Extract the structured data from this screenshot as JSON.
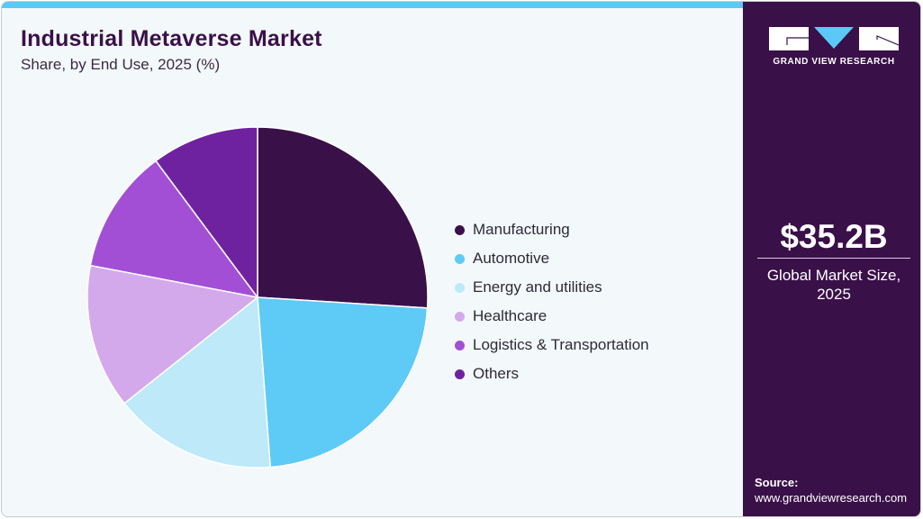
{
  "header": {
    "title": "Industrial Metaverse Market",
    "subtitle": "Share, by End Use, 2025 (%)"
  },
  "brand": {
    "name": "GRAND VIEW RESEARCH",
    "logo_icon": "gvr-logo-icon"
  },
  "sidebar": {
    "market_value": "$35.2B",
    "market_label_line1": "Global Market Size,",
    "market_label_line2": "2025",
    "source_label": "Source:",
    "source_url": "www.grandviewresearch.com"
  },
  "colors": {
    "brand_dark": "#3a1049",
    "accent_blue": "#5bc9f5",
    "background": "#f3f8fb"
  },
  "legend": {
    "items": [
      {
        "label": "Manufacturing",
        "color": "#3a1049"
      },
      {
        "label": "Automotive",
        "color": "#5ecaf6"
      },
      {
        "label": "Energy and utilities",
        "color": "#bde9f9"
      },
      {
        "label": "Healthcare",
        "color": "#d4a9ec"
      },
      {
        "label": "Logistics & Transportation",
        "color": "#a24fd6"
      },
      {
        "label": "Others",
        "color": "#6f22a0"
      }
    ]
  },
  "chart_data": {
    "type": "pie",
    "title": "Industrial Metaverse Market",
    "subtitle": "Share, by End Use, 2025 (%)",
    "categories": [
      "Manufacturing",
      "Automotive",
      "Energy and utilities",
      "Healthcare",
      "Logistics & Transportation",
      "Others"
    ],
    "values": [
      26.0,
      22.8,
      15.5,
      13.7,
      11.8,
      10.2
    ],
    "colors": [
      "#3a1049",
      "#5ecaf6",
      "#bde9f9",
      "#d4a9ec",
      "#a24fd6",
      "#6f22a0"
    ],
    "start_angle": "12 o'clock, clockwise",
    "legend_position": "right",
    "annotation": "$35.2B Global Market Size, 2025"
  }
}
